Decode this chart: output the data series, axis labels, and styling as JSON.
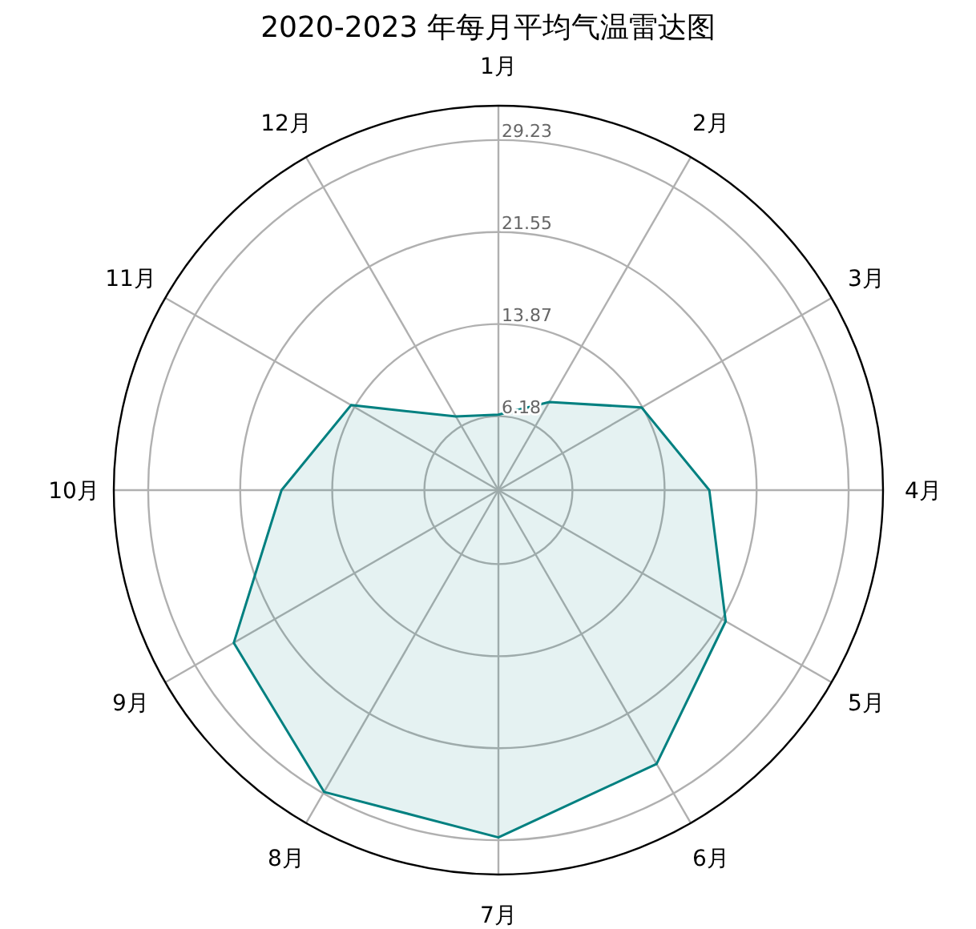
{
  "chart_data": {
    "type": "radar",
    "title": "2020-2023 年每月平均气温雷达图",
    "categories": [
      "1月",
      "2月",
      "3月",
      "4月",
      "5月",
      "6月",
      "7月",
      "8月",
      "9月",
      "10月",
      "11月",
      "12月"
    ],
    "series": [
      {
        "color": "#008080",
        "values": [
          6.3,
          8.5,
          13.8,
          17.6,
          21.9,
          26.4,
          29.0,
          29.1,
          25.5,
          18.1,
          14.2,
          7.1
        ]
      }
    ],
    "ylim": [
      0,
      32.1
    ],
    "yticks": [
      6.18,
      13.87,
      21.55,
      29.23
    ],
    "grid": true
  }
}
